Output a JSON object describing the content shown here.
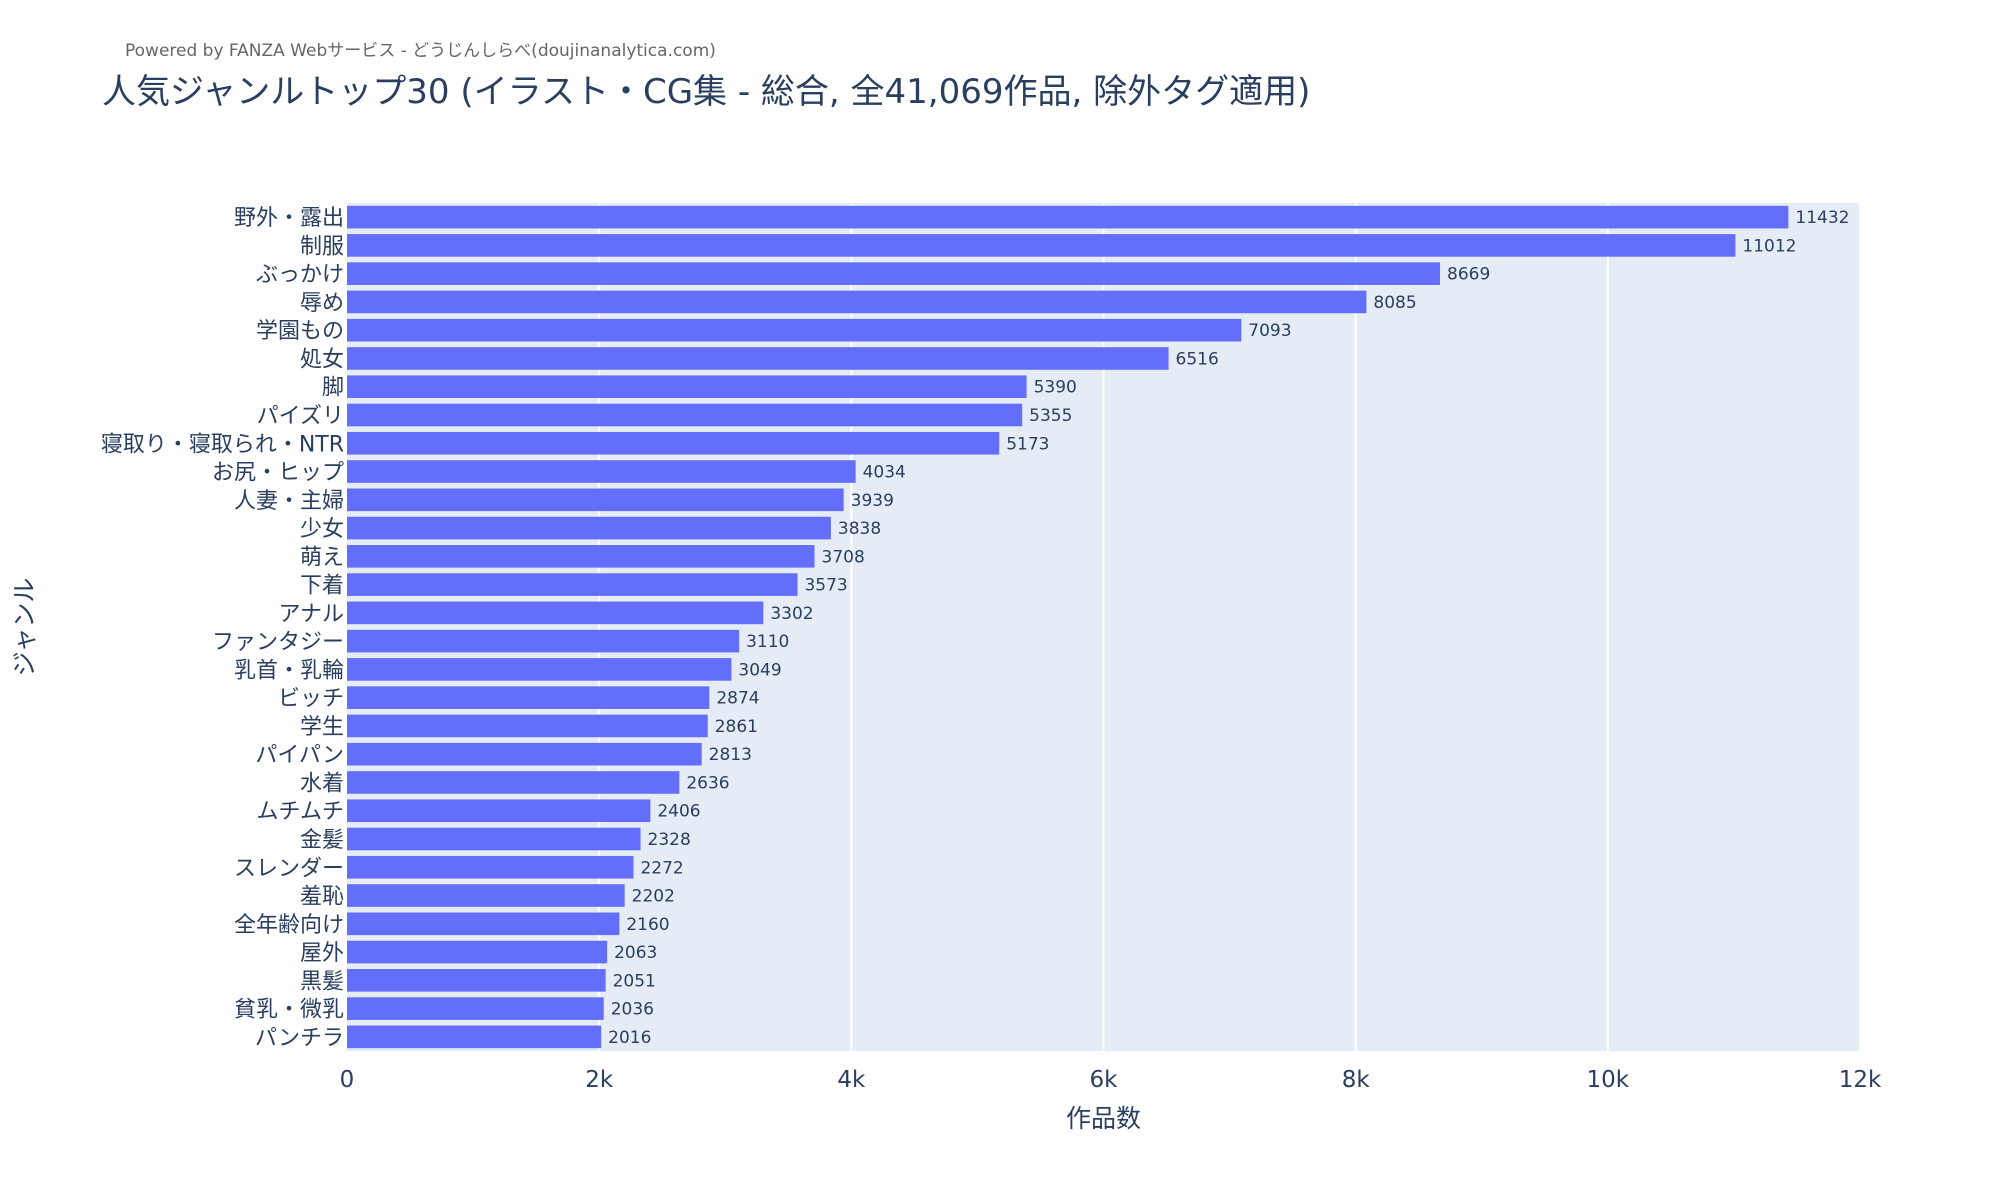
{
  "credit": "Powered by FANZA Webサービス - どうじんしらべ(doujinanalytica.com)",
  "colors": {
    "bar": "#636efa",
    "plot_bg": "#e5ecf6",
    "grid": "#ffffff",
    "text": "#2a3f5f"
  },
  "chart_data": {
    "type": "bar",
    "orientation": "horizontal",
    "title": "人気ジャンルトップ30 (イラスト・CG集 - 総合, 全41,069作品, 除外タグ適用)",
    "xlabel": "作品数",
    "ylabel": "ジャンル",
    "xlim": [
      0,
      12000
    ],
    "xticks": [
      {
        "value": 0,
        "label": "0"
      },
      {
        "value": 2000,
        "label": "2k"
      },
      {
        "value": 4000,
        "label": "4k"
      },
      {
        "value": 6000,
        "label": "6k"
      },
      {
        "value": 8000,
        "label": "8k"
      },
      {
        "value": 10000,
        "label": "10k"
      },
      {
        "value": 12000,
        "label": "12k"
      }
    ],
    "grid": true,
    "categories": [
      "野外・露出",
      "制服",
      "ぶっかけ",
      "辱め",
      "学園もの",
      "処女",
      "脚",
      "パイズリ",
      "寝取り・寝取られ・NTR",
      "お尻・ヒップ",
      "人妻・主婦",
      "少女",
      "萌え",
      "下着",
      "アナル",
      "ファンタジー",
      "乳首・乳輪",
      "ビッチ",
      "学生",
      "パイパン",
      "水着",
      "ムチムチ",
      "金髪",
      "スレンダー",
      "羞恥",
      "全年齢向け",
      "屋外",
      "黒髪",
      "貧乳・微乳",
      "パンチラ"
    ],
    "values": [
      11432,
      11012,
      8669,
      8085,
      7093,
      6516,
      5390,
      5355,
      5173,
      4034,
      3939,
      3838,
      3708,
      3573,
      3302,
      3110,
      3049,
      2874,
      2861,
      2813,
      2636,
      2406,
      2328,
      2272,
      2202,
      2160,
      2063,
      2051,
      2036,
      2016
    ]
  }
}
